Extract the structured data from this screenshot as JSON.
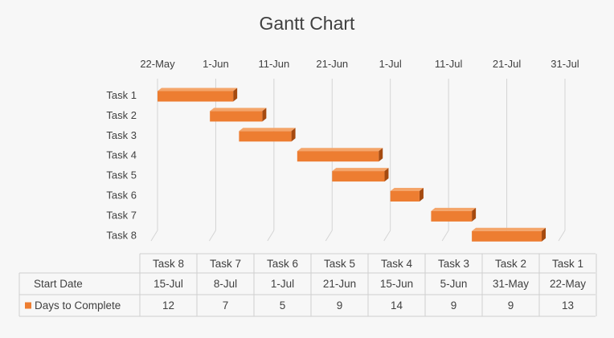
{
  "chart_data": {
    "type": "bar",
    "orientation": "horizontal",
    "style": "stacked-gantt-3d",
    "title": "Gantt Chart",
    "x_axis": {
      "type": "date",
      "position": "top",
      "ticks": [
        "22-May",
        "1-Jun",
        "11-Jun",
        "21-Jun",
        "1-Jul",
        "11-Jul",
        "21-Jul",
        "31-Jul"
      ],
      "range": [
        "2020-05-22",
        "2020-07-31"
      ]
    },
    "categories": [
      "Task 1",
      "Task 2",
      "Task 3",
      "Task 4",
      "Task 5",
      "Task 6",
      "Task 7",
      "Task 8"
    ],
    "series": [
      {
        "name": "Start Date",
        "visible": false,
        "values": [
          "22-May",
          "31-May",
          "5-Jun",
          "15-Jun",
          "21-Jun",
          "1-Jul",
          "8-Jul",
          "15-Jul"
        ],
        "dates": [
          "2020-05-22",
          "2020-05-31",
          "2020-06-05",
          "2020-06-15",
          "2020-06-21",
          "2020-07-01",
          "2020-07-08",
          "2020-07-15"
        ]
      },
      {
        "name": "Days to Complete",
        "color": "#ed7d31",
        "values": [
          13,
          9,
          9,
          14,
          9,
          5,
          7,
          12
        ]
      }
    ],
    "data_table": {
      "columns": [
        "Task 8",
        "Task 7",
        "Task 6",
        "Task 5",
        "Task 4",
        "Task 3",
        "Task 2",
        "Task 1"
      ],
      "rows": [
        {
          "label": "Start Date",
          "key": false,
          "cells": [
            "15-Jul",
            "8-Jul",
            "1-Jul",
            "21-Jun",
            "15-Jun",
            "5-Jun",
            "31-May",
            "22-May"
          ]
        },
        {
          "label": "Days to Complete",
          "key": true,
          "cells": [
            "12",
            "7",
            "5",
            "9",
            "14",
            "9",
            "9",
            "13"
          ]
        }
      ]
    },
    "gridlines": true,
    "legend": "data-table-keys"
  }
}
